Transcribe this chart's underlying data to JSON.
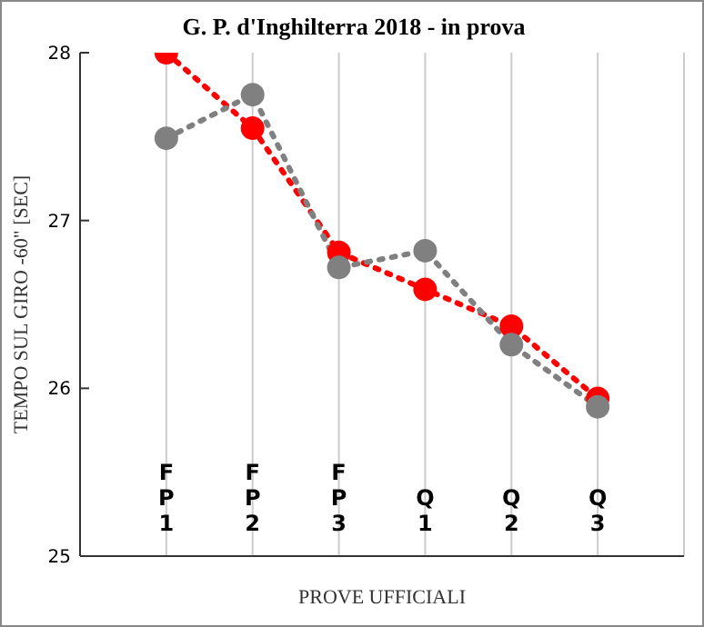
{
  "chart_data": {
    "type": "line",
    "title": "G. P. d'Inghilterra 2018 - in prova",
    "xlabel": "PROVE UFFICIALI",
    "ylabel": "TEMPO SUL GIRO -60\"  [SEC]",
    "categories": [
      "FP1",
      "FP2",
      "FP3",
      "Q1",
      "Q2",
      "Q3"
    ],
    "series": [
      {
        "color": "#808080",
        "values": [
          27.49,
          27.75,
          26.72,
          26.82,
          26.26,
          25.89
        ]
      },
      {
        "color": "#ff0000",
        "values": [
          28.0,
          27.55,
          26.81,
          26.59,
          26.37,
          25.94
        ]
      }
    ],
    "ylim": [
      25,
      28
    ],
    "yticks": [
      25,
      26,
      27,
      28
    ],
    "grid": "x",
    "marker": "circle",
    "line_style": "dotted",
    "legend": false
  }
}
